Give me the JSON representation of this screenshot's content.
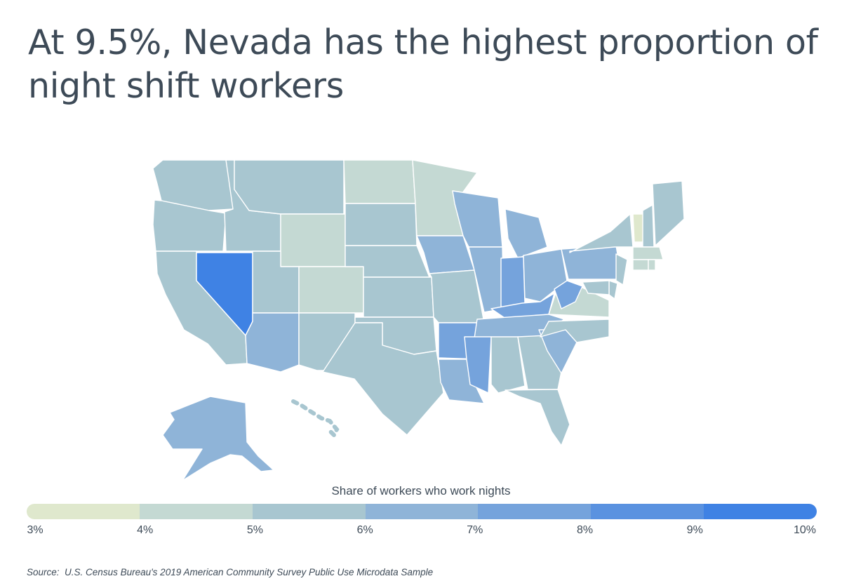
{
  "title": "At 9.5%, Nevada has the highest proportion of night shift workers",
  "legend": {
    "title": "Share of workers who work nights",
    "ticks": [
      "3%",
      "4%",
      "5%",
      "6%",
      "7%",
      "8%",
      "9%",
      "10%"
    ],
    "colors": [
      "#dfe8cd",
      "#c4d9d3",
      "#a8c6d0",
      "#8fb4d8",
      "#75a3dc",
      "#5a92e0",
      "#3f82e4"
    ]
  },
  "source": {
    "label": "Source:",
    "text": "U.S. Census Bureau's 2019 American Community Survey Public Use Microdata Sample"
  },
  "chart_data": {
    "type": "choropleth",
    "unit": "%",
    "scale": {
      "min": 3,
      "max": 10,
      "step": 1
    },
    "highlight": {
      "state": "Nevada",
      "value": 9.5
    },
    "states": {
      "WA": 5.5,
      "OR": 5.5,
      "CA": 5.5,
      "NV": 9.5,
      "ID": 5.5,
      "MT": 5.5,
      "WY": 4.5,
      "UT": 5.5,
      "AZ": 6.5,
      "CO": 4.5,
      "NM": 5.5,
      "ND": 4.5,
      "SD": 5.5,
      "NE": 5.5,
      "KS": 5.5,
      "OK": 5.5,
      "TX": 5.5,
      "MN": 4.5,
      "IA": 6.5,
      "MO": 5.5,
      "AR": 7.5,
      "LA": 6.5,
      "WI": 6.5,
      "IL": 6.5,
      "MI": 6.5,
      "IN": 7.5,
      "OH": 6.5,
      "KY": 7.5,
      "TN": 6,
      "MS": 7.5,
      "AL": 5.5,
      "GA": 5.5,
      "FL": 5.5,
      "SC": 6.5,
      "NC": 5.5,
      "VA": 4.5,
      "WV": 7.5,
      "PA": 6.5,
      "NY": 5.5,
      "VT": 3.5,
      "NH": 5,
      "ME": 5.5,
      "MA": 4.5,
      "CT": 4.5,
      "RI": 4.5,
      "NJ": 5,
      "DE": 5.5,
      "MD": 5,
      "AK": 6.5,
      "HI": 5.5
    }
  }
}
